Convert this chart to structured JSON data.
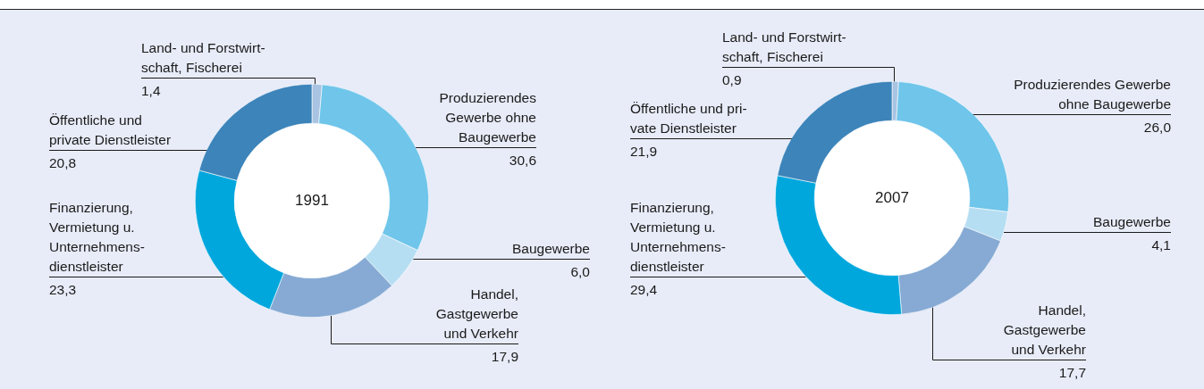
{
  "chart_data": [
    {
      "type": "donut",
      "title": "1991",
      "categories": [
        "Land- und Forstwirt-\nschaft, Fischerei",
        "Produzierendes\nGewerbe ohne\nBaugewerbe",
        "Baugewerbe",
        "Handel,\nGastgewerbe\nund Verkehr",
        "Finanzierung,\nVermietung u.\nUnternehmens-\ndienstleister",
        "Öffentliche und\nprivate Dienstleister"
      ],
      "values": [
        1.4,
        30.6,
        6.0,
        17.9,
        23.3,
        20.8
      ],
      "value_labels": [
        "1,4",
        "30,6",
        "6,0",
        "17,9",
        "23,3",
        "20,8"
      ],
      "colors": [
        "#a9c4e2",
        "#6fc5ea",
        "#b6def2",
        "#86aad4",
        "#00a7dd",
        "#3c84ba"
      ]
    },
    {
      "type": "donut",
      "title": "2007",
      "categories": [
        "Land- und Forstwirt-\nschaft, Fischerei",
        "Produzierendes Gewerbe\nohne Baugewerbe",
        "Baugewerbe",
        "Handel,\nGastgewerbe\nund Verkehr",
        "Finanzierung,\nVermietung u.\nUnternehmens-\ndienstleister",
        "Öffentliche und pri-\nvate Dienstleister"
      ],
      "values": [
        0.9,
        26.0,
        4.1,
        17.7,
        29.4,
        21.9
      ],
      "value_labels": [
        "0,9",
        "26,0",
        "4,1",
        "17,7",
        "29,4",
        "21,9"
      ],
      "colors": [
        "#a9c4e2",
        "#6fc5ea",
        "#b6def2",
        "#86aad4",
        "#00a7dd",
        "#3c84ba"
      ]
    }
  ]
}
